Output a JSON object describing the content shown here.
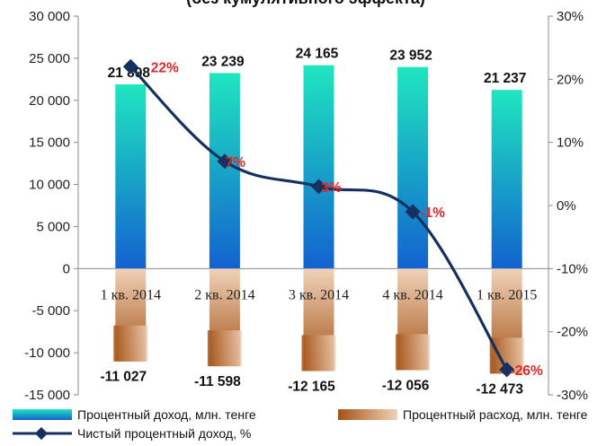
{
  "chart_data": {
    "title": "(без кумулятивного эффекта)",
    "categories": [
      "1 кв. 2014",
      "2 кв. 2014",
      "3 кв. 2014",
      "4 кв. 2014",
      "1 кв. 2015"
    ],
    "series": [
      {
        "name": "Процентный доход, млн. тенге",
        "type": "bar",
        "axis": "left",
        "values": [
          21898,
          23239,
          24165,
          23952,
          21237
        ],
        "labels": [
          "21 898",
          "23 239",
          "24 165",
          "23 952",
          "21 237"
        ],
        "colors": {
          "top": "#1fe6c0",
          "bottom": "#1262cf"
        }
      },
      {
        "name": "Процентный расход, млн. тенге",
        "type": "bar",
        "axis": "left",
        "values": [
          -11027,
          -11598,
          -12165,
          -12056,
          -12473
        ],
        "labels": [
          "-11 027",
          "-11 598",
          "-12 165",
          "-12 056",
          "-12 473"
        ],
        "colors": {
          "top": "#f0d2b8",
          "bottom": "#a45216"
        }
      },
      {
        "name": "Чистый процентный доход, %",
        "type": "line",
        "axis": "right",
        "values": [
          22,
          7,
          3,
          -1,
          -26
        ],
        "labels": [
          "22%",
          "7%",
          "3%",
          "-1%",
          "-26%"
        ],
        "color": "#16305f"
      }
    ],
    "y_left": {
      "min": -15000,
      "max": 30000,
      "step": 5000,
      "ticks": [
        "-15 000",
        "-10 000",
        "-5 000",
        "0",
        "5 000",
        "10 000",
        "15 000",
        "20 000",
        "25 000",
        "30 000"
      ]
    },
    "y_right": {
      "min": -30,
      "max": 30,
      "step": 10,
      "ticks": [
        "-30%",
        "-20%",
        "-10%",
        "0%",
        "10%",
        "20%",
        "30%"
      ]
    },
    "legend_position": "bottom",
    "grid": false
  }
}
